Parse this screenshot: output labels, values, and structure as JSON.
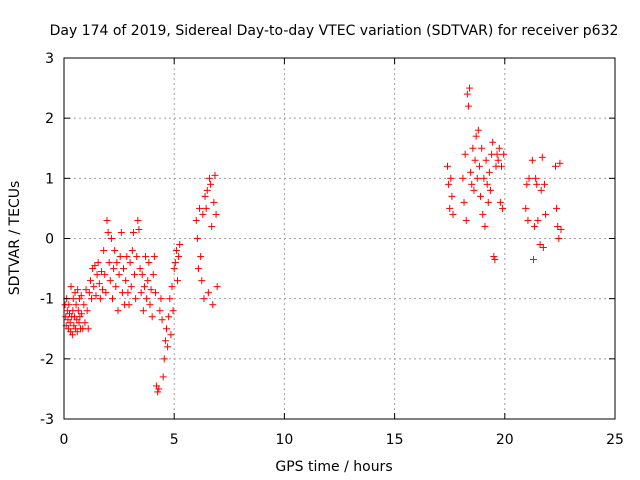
{
  "chart_data": {
    "type": "scatter",
    "title": "Day 174 of 2019, Sidereal Day-to-day VTEC variation (SDTVAR) for receiver p632",
    "xlabel": "GPS time / hours",
    "ylabel": "SDTVAR / TECUs",
    "xlim": [
      0,
      25
    ],
    "ylim": [
      -3,
      3
    ],
    "xticks": [
      "0",
      "5",
      "10",
      "15",
      "20",
      "25"
    ],
    "yticks": [
      "-3",
      "-2",
      "-1",
      "0",
      "1",
      "2",
      "3"
    ],
    "grid": true,
    "marker": "+",
    "color": "#ff0000",
    "series": [
      {
        "name": "SDTVAR",
        "points": [
          [
            0.05,
            -1.1
          ],
          [
            0.08,
            -1.3
          ],
          [
            0.1,
            -1.45
          ],
          [
            0.12,
            -1.0
          ],
          [
            0.15,
            -1.2
          ],
          [
            0.18,
            -1.35
          ],
          [
            0.2,
            -1.5
          ],
          [
            0.22,
            -1.1
          ],
          [
            0.25,
            -1.25
          ],
          [
            0.28,
            -1.4
          ],
          [
            0.3,
            -1.55
          ],
          [
            0.32,
            -0.8
          ],
          [
            0.35,
            -1.3
          ],
          [
            0.38,
            -1.6
          ],
          [
            0.4,
            -1.2
          ],
          [
            0.42,
            -1.0
          ],
          [
            0.45,
            -1.45
          ],
          [
            0.48,
            -1.3
          ],
          [
            0.5,
            -0.9
          ],
          [
            0.52,
            -1.5
          ],
          [
            0.55,
            -1.1
          ],
          [
            0.58,
            -1.35
          ],
          [
            0.6,
            -1.55
          ],
          [
            0.62,
            -0.85
          ],
          [
            0.65,
            -1.2
          ],
          [
            0.68,
            -1.4
          ],
          [
            0.7,
            -1.0
          ],
          [
            0.72,
            -1.3
          ],
          [
            0.75,
            -1.5
          ],
          [
            0.78,
            -0.95
          ],
          [
            0.8,
            -1.25
          ],
          [
            0.85,
            -1.5
          ],
          [
            0.9,
            -1.1
          ],
          [
            0.95,
            -1.4
          ],
          [
            1.0,
            -0.85
          ],
          [
            1.05,
            -1.2
          ],
          [
            1.1,
            -1.5
          ],
          [
            1.15,
            -0.9
          ],
          [
            1.2,
            -0.7
          ],
          [
            1.25,
            -1.0
          ],
          [
            1.3,
            -0.5
          ],
          [
            1.35,
            -0.8
          ],
          [
            1.4,
            -0.45
          ],
          [
            1.45,
            -0.95
          ],
          [
            1.5,
            -0.6
          ],
          [
            1.55,
            -0.4
          ],
          [
            1.6,
            -0.75
          ],
          [
            1.65,
            -1.0
          ],
          [
            1.7,
            -0.55
          ],
          [
            1.75,
            -0.85
          ],
          [
            1.8,
            -0.2
          ],
          [
            1.85,
            -0.6
          ],
          [
            1.9,
            -0.9
          ],
          [
            1.95,
            0.3
          ],
          [
            2.0,
            0.1
          ],
          [
            2.05,
            -0.4
          ],
          [
            2.1,
            -0.7
          ],
          [
            2.15,
            0.0
          ],
          [
            2.2,
            -1.0
          ],
          [
            2.25,
            -0.5
          ],
          [
            2.3,
            -0.2
          ],
          [
            2.35,
            -0.8
          ],
          [
            2.4,
            -0.4
          ],
          [
            2.45,
            -1.2
          ],
          [
            2.5,
            -0.6
          ],
          [
            2.55,
            -0.3
          ],
          [
            2.6,
            0.1
          ],
          [
            2.65,
            -0.9
          ],
          [
            2.7,
            -0.5
          ],
          [
            2.75,
            -1.1
          ],
          [
            2.8,
            -0.7
          ],
          [
            2.85,
            -0.3
          ],
          [
            2.9,
            -0.9
          ],
          [
            2.95,
            -1.1
          ],
          [
            3.0,
            -0.4
          ],
          [
            3.05,
            -0.8
          ],
          [
            3.1,
            -0.2
          ],
          [
            3.15,
            0.1
          ],
          [
            3.2,
            -0.6
          ],
          [
            3.25,
            -1.0
          ],
          [
            3.3,
            -0.3
          ],
          [
            3.35,
            0.3
          ],
          [
            3.4,
            0.15
          ],
          [
            3.45,
            -0.5
          ],
          [
            3.5,
            -0.9
          ],
          [
            3.55,
            -0.6
          ],
          [
            3.6,
            -1.2
          ],
          [
            3.65,
            -0.8
          ],
          [
            3.7,
            -0.3
          ],
          [
            3.75,
            -1.0
          ],
          [
            3.8,
            -0.7
          ],
          [
            3.85,
            -0.4
          ],
          [
            3.9,
            -1.1
          ],
          [
            3.95,
            -0.85
          ],
          [
            4.0,
            -1.3
          ],
          [
            4.05,
            -0.6
          ],
          [
            4.1,
            -0.3
          ],
          [
            4.15,
            -0.9
          ],
          [
            4.2,
            -2.45
          ],
          [
            4.25,
            -2.55
          ],
          [
            4.3,
            -2.5
          ],
          [
            4.35,
            -1.2
          ],
          [
            4.4,
            -1.0
          ],
          [
            4.45,
            -1.35
          ],
          [
            4.5,
            -2.3
          ],
          [
            4.55,
            -2.0
          ],
          [
            4.6,
            -1.7
          ],
          [
            4.65,
            -1.5
          ],
          [
            4.7,
            -1.8
          ],
          [
            4.75,
            -1.3
          ],
          [
            4.8,
            -1.0
          ],
          [
            4.85,
            -1.6
          ],
          [
            4.9,
            -0.8
          ],
          [
            4.95,
            -1.2
          ],
          [
            5.0,
            -0.5
          ],
          [
            5.05,
            -0.4
          ],
          [
            5.1,
            -0.2
          ],
          [
            5.15,
            -0.7
          ],
          [
            5.2,
            -0.3
          ],
          [
            5.25,
            -0.1
          ],
          [
            6.0,
            0.3
          ],
          [
            6.05,
            0.0
          ],
          [
            6.1,
            -0.5
          ],
          [
            6.15,
            0.5
          ],
          [
            6.2,
            -0.3
          ],
          [
            6.25,
            -0.7
          ],
          [
            6.3,
            0.4
          ],
          [
            6.35,
            -1.0
          ],
          [
            6.4,
            0.7
          ],
          [
            6.45,
            0.5
          ],
          [
            6.5,
            0.8
          ],
          [
            6.55,
            -0.9
          ],
          [
            6.6,
            1.0
          ],
          [
            6.65,
            0.9
          ],
          [
            6.7,
            0.2
          ],
          [
            6.75,
            -1.1
          ],
          [
            6.8,
            0.6
          ],
          [
            6.85,
            1.05
          ],
          [
            6.9,
            0.4
          ],
          [
            6.95,
            -0.8
          ],
          [
            17.4,
            1.2
          ],
          [
            17.45,
            0.9
          ],
          [
            17.5,
            0.5
          ],
          [
            17.55,
            1.0
          ],
          [
            17.6,
            0.7
          ],
          [
            17.65,
            0.4
          ],
          [
            18.1,
            1.0
          ],
          [
            18.15,
            0.6
          ],
          [
            18.2,
            1.4
          ],
          [
            18.25,
            0.3
          ],
          [
            18.3,
            2.4
          ],
          [
            18.35,
            2.2
          ],
          [
            18.4,
            2.5
          ],
          [
            18.45,
            1.1
          ],
          [
            18.5,
            0.9
          ],
          [
            18.55,
            1.5
          ],
          [
            18.6,
            0.8
          ],
          [
            18.65,
            1.3
          ],
          [
            18.7,
            1.7
          ],
          [
            18.75,
            1.0
          ],
          [
            18.8,
            1.8
          ],
          [
            18.85,
            1.2
          ],
          [
            18.9,
            0.7
          ],
          [
            18.95,
            1.5
          ],
          [
            19.0,
            0.4
          ],
          [
            19.05,
            1.0
          ],
          [
            19.1,
            0.2
          ],
          [
            19.15,
            1.3
          ],
          [
            19.2,
            0.9
          ],
          [
            19.25,
            0.6
          ],
          [
            19.3,
            1.1
          ],
          [
            19.35,
            0.8
          ],
          [
            19.4,
            1.4
          ],
          [
            19.45,
            1.6
          ],
          [
            19.5,
            -0.3
          ],
          [
            19.55,
            -0.35
          ],
          [
            19.6,
            1.2
          ],
          [
            19.65,
            1.4
          ],
          [
            19.7,
            1.3
          ],
          [
            19.75,
            1.5
          ],
          [
            19.8,
            0.6
          ],
          [
            19.85,
            1.2
          ],
          [
            19.9,
            0.5
          ],
          [
            19.95,
            1.4
          ],
          [
            20.95,
            0.5
          ],
          [
            21.0,
            0.9
          ],
          [
            21.05,
            0.3
          ],
          [
            21.1,
            1.0
          ],
          [
            21.25,
            1.3
          ],
          [
            21.3,
            -0.35
          ],
          [
            21.35,
            0.2
          ],
          [
            21.4,
            1.0
          ],
          [
            21.45,
            0.9
          ],
          [
            21.5,
            0.3
          ],
          [
            21.6,
            -0.1
          ],
          [
            21.65,
            0.8
          ],
          [
            21.7,
            1.35
          ],
          [
            21.75,
            -0.15
          ],
          [
            21.8,
            0.9
          ],
          [
            21.85,
            0.4
          ],
          [
            22.3,
            1.2
          ],
          [
            22.35,
            0.5
          ],
          [
            22.4,
            0.2
          ],
          [
            22.45,
            0.0
          ],
          [
            22.5,
            1.25
          ],
          [
            22.55,
            0.15
          ]
        ]
      }
    ]
  }
}
